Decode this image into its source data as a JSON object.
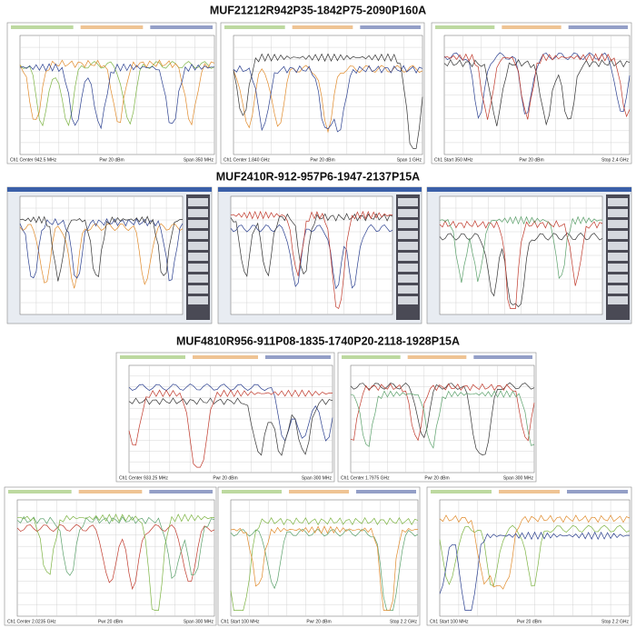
{
  "sections": [
    {
      "title": "MUF21212R942P35-1842P75-2090P160A",
      "panels": [
        {
          "footer": [
            "Ch1 Center 942.5 MHz",
            "Pwr 20 dBm",
            "Span 350 MHz"
          ]
        },
        {
          "footer": [
            "Ch1 Center 1.840 GHz",
            "Pwr 20 dBm",
            "Span 1 GHz"
          ]
        },
        {
          "footer": [
            "Ch1 Start 350 MHz",
            "Pwr 20 dBm",
            "Stop 2.4 GHz"
          ]
        }
      ]
    },
    {
      "title": "MUF2410R-912-957P6-1947-2137P15A",
      "panels": [
        {},
        {},
        {}
      ]
    },
    {
      "title": "MUF4810R956-911P08-1835-1740P20-2118-1928P15A",
      "panels": [
        {
          "footer": [
            "Ch1 Center 933.25 MHz",
            "Pwr 20 dBm",
            "Span 300 MHz"
          ]
        },
        {
          "footer": [
            "Ch1 Center 1.7975 GHz",
            "Pwr 20 dBm",
            "Span 300 MHz"
          ]
        },
        {
          "footer": [
            "Ch1 Center 2.0235 GHz",
            "Pwr 20 dBm",
            "Span 300 MHz"
          ]
        },
        {
          "footer": [
            "Ch1 Start 100 MHz",
            "Pwr 20 dBm",
            "Stop 2.2 GHz"
          ]
        },
        {
          "footer": [
            "Ch1 Start 100 MHz",
            "Pwr 20 dBm",
            "Stop 2.2 GHz"
          ]
        }
      ]
    }
  ]
}
